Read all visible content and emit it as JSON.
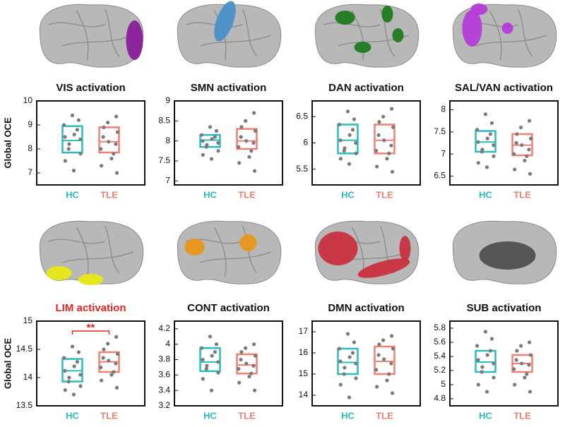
{
  "chart_data": [
    {
      "type": "box",
      "title": "VIS activation",
      "ylabel": "Global OCE",
      "title_color": "#111111",
      "ylim": [
        6.5,
        10
      ],
      "yticks": [
        7,
        8,
        9,
        10
      ],
      "series": [
        {
          "name": "HC",
          "color": "#2bbcbc",
          "q1": 7.85,
          "median": 8.35,
          "q3": 8.95,
          "points": [
            9.4,
            9.2,
            9.0,
            8.8,
            8.6,
            8.5,
            8.4,
            8.2,
            8.0,
            7.8,
            7.5,
            7.1
          ]
        },
        {
          "name": "TLE",
          "color": "#f07f74",
          "q1": 7.85,
          "median": 8.3,
          "q3": 8.9,
          "points": [
            9.35,
            9.1,
            8.9,
            8.7,
            8.5,
            8.3,
            8.2,
            8.0,
            7.8,
            7.6,
            7.3,
            7.0
          ]
        }
      ]
    },
    {
      "type": "box",
      "title": "SMN activation",
      "title_color": "#111111",
      "ylim": [
        6.9,
        9
      ],
      "yticks": [
        7,
        7.5,
        8,
        8.5,
        9
      ],
      "series": [
        {
          "name": "HC",
          "color": "#2bbcbc",
          "q1": 7.85,
          "median": 8.02,
          "q3": 8.15,
          "points": [
            8.35,
            8.25,
            8.15,
            8.1,
            8.05,
            8.0,
            7.95,
            7.9,
            7.85,
            7.75,
            7.65,
            7.55
          ]
        },
        {
          "name": "TLE",
          "color": "#f07f74",
          "q1": 7.8,
          "median": 8.0,
          "q3": 8.3,
          "points": [
            8.7,
            8.5,
            8.35,
            8.25,
            8.1,
            8.0,
            7.95,
            7.85,
            7.75,
            7.6,
            7.45,
            7.25
          ]
        }
      ]
    },
    {
      "type": "box",
      "title": "DAN activation",
      "title_color": "#111111",
      "ylim": [
        5.2,
        6.8
      ],
      "yticks": [
        5.5,
        6,
        6.5
      ],
      "series": [
        {
          "name": "HC",
          "color": "#2bbcbc",
          "q1": 5.8,
          "median": 6.05,
          "q3": 6.35,
          "points": [
            6.6,
            6.45,
            6.35,
            6.25,
            6.15,
            6.05,
            6.0,
            5.9,
            5.85,
            5.8,
            5.7,
            5.6
          ]
        },
        {
          "name": "TLE",
          "color": "#f07f74",
          "q1": 5.8,
          "median": 6.05,
          "q3": 6.35,
          "points": [
            6.65,
            6.5,
            6.4,
            6.3,
            6.15,
            6.05,
            5.95,
            5.85,
            5.8,
            5.7,
            5.55,
            5.45
          ]
        }
      ]
    },
    {
      "type": "box",
      "title": "SAL/VAN activation",
      "title_color": "#111111",
      "ylim": [
        6.3,
        8.2
      ],
      "yticks": [
        6.5,
        7,
        7.5,
        8
      ],
      "series": [
        {
          "name": "HC",
          "color": "#2bbcbc",
          "q1": 7.05,
          "median": 7.27,
          "q3": 7.52,
          "points": [
            7.9,
            7.7,
            7.55,
            7.45,
            7.35,
            7.27,
            7.2,
            7.1,
            7.05,
            6.95,
            6.8,
            6.7
          ]
        },
        {
          "name": "TLE",
          "color": "#f07f74",
          "q1": 6.97,
          "median": 7.2,
          "q3": 7.45,
          "points": [
            7.75,
            7.6,
            7.45,
            7.35,
            7.25,
            7.2,
            7.1,
            7.0,
            6.95,
            6.85,
            6.65,
            6.55
          ]
        }
      ]
    },
    {
      "type": "box",
      "title": "LIM activation",
      "ylabel": "Global OCE",
      "title_color": "#e8231d",
      "annotation": "**",
      "ylim": [
        13.5,
        15
      ],
      "yticks": [
        13.5,
        14,
        14.5,
        15
      ],
      "series": [
        {
          "name": "HC",
          "color": "#2bbcbc",
          "q1": 13.93,
          "median": 14.12,
          "q3": 14.33,
          "points": [
            14.55,
            14.45,
            14.35,
            14.28,
            14.2,
            14.12,
            14.05,
            14.0,
            13.93,
            13.85,
            13.78,
            13.7
          ]
        },
        {
          "name": "TLE",
          "color": "#f07f74",
          "q1": 14.1,
          "median": 14.28,
          "q3": 14.45,
          "points": [
            14.72,
            14.6,
            14.5,
            14.42,
            14.35,
            14.3,
            14.25,
            14.18,
            14.1,
            14.05,
            13.95,
            13.82
          ]
        }
      ]
    },
    {
      "type": "box",
      "title": "CONT activation",
      "title_color": "#111111",
      "ylim": [
        3.2,
        4.3
      ],
      "yticks": [
        3.2,
        3.4,
        3.6,
        3.8,
        4,
        4.2
      ],
      "series": [
        {
          "name": "HC",
          "color": "#2bbcbc",
          "q1": 3.65,
          "median": 3.77,
          "q3": 3.95,
          "points": [
            4.1,
            4.0,
            3.95,
            3.9,
            3.85,
            3.8,
            3.77,
            3.72,
            3.68,
            3.63,
            3.55,
            3.4
          ]
        },
        {
          "name": "TLE",
          "color": "#f07f74",
          "q1": 3.62,
          "median": 3.73,
          "q3": 3.87,
          "points": [
            4.0,
            3.95,
            3.9,
            3.85,
            3.8,
            3.75,
            3.72,
            3.68,
            3.62,
            3.58,
            3.5,
            3.4
          ]
        }
      ]
    },
    {
      "type": "box",
      "title": "DMN activation",
      "title_color": "#111111",
      "ylim": [
        13.5,
        17.5
      ],
      "yticks": [
        14,
        15,
        16,
        17
      ],
      "series": [
        {
          "name": "HC",
          "color": "#2bbcbc",
          "q1": 15.0,
          "median": 15.55,
          "q3": 16.2,
          "points": [
            16.9,
            16.5,
            16.2,
            16.0,
            15.8,
            15.6,
            15.5,
            15.3,
            15.0,
            14.8,
            14.5,
            13.9
          ]
        },
        {
          "name": "TLE",
          "color": "#f07f74",
          "q1": 15.0,
          "median": 15.6,
          "q3": 16.3,
          "points": [
            16.8,
            16.6,
            16.4,
            16.2,
            15.9,
            15.7,
            15.5,
            15.2,
            15.0,
            14.7,
            14.4,
            14.1
          ]
        }
      ]
    },
    {
      "type": "box",
      "title": "SUB activation",
      "title_color": "#111111",
      "ylim": [
        4.7,
        5.9
      ],
      "yticks": [
        4.8,
        5,
        5.2,
        5.4,
        5.6,
        5.8
      ],
      "series": [
        {
          "name": "HC",
          "color": "#2bbcbc",
          "q1": 5.18,
          "median": 5.32,
          "q3": 5.48,
          "points": [
            5.75,
            5.65,
            5.55,
            5.48,
            5.42,
            5.35,
            5.3,
            5.25,
            5.18,
            5.1,
            5.0,
            4.9
          ]
        },
        {
          "name": "TLE",
          "color": "#f07f74",
          "q1": 5.18,
          "median": 5.3,
          "q3": 5.42,
          "points": [
            5.6,
            5.55,
            5.48,
            5.42,
            5.35,
            5.3,
            5.28,
            5.22,
            5.15,
            5.1,
            5.0,
            4.9
          ]
        }
      ]
    }
  ]
}
